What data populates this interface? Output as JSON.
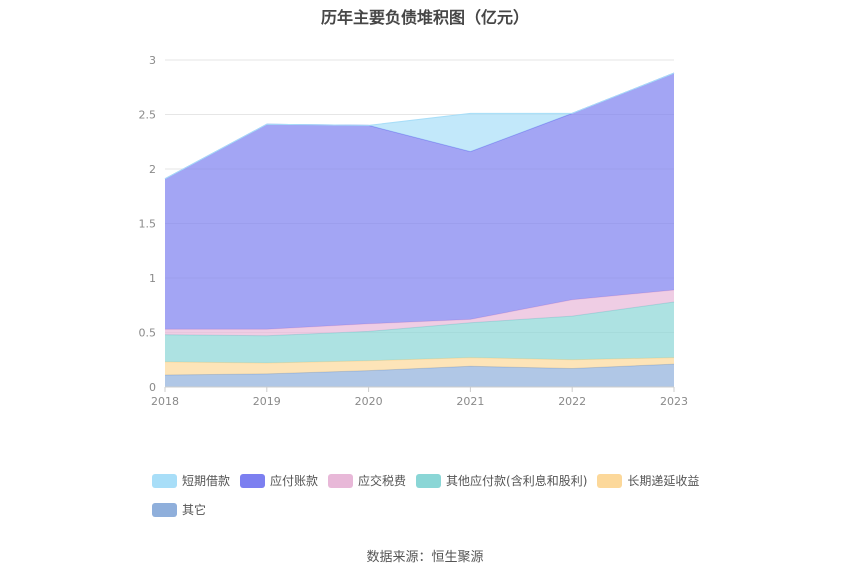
{
  "title": "历年主要负债堆积图（亿元）",
  "source_label": "数据来源：恒生聚源",
  "chart_data": {
    "type": "area",
    "stacked": true,
    "categories": [
      "2018",
      "2019",
      "2020",
      "2021",
      "2022",
      "2023"
    ],
    "ylim": [
      0,
      3
    ],
    "yticks": [
      "0",
      "0.5",
      "1",
      "1.5",
      "2",
      "2.5",
      "3"
    ],
    "grid": true,
    "legend_position": "bottom",
    "series": [
      {
        "name": "其它",
        "color": "#8fafdb",
        "values": [
          0.11,
          0.12,
          0.15,
          0.19,
          0.17,
          0.21
        ]
      },
      {
        "name": "长期递延收益",
        "color": "#fcd89a",
        "values": [
          0.12,
          0.1,
          0.09,
          0.08,
          0.08,
          0.06
        ]
      },
      {
        "name": "其他应付款(含利息和股利)",
        "color": "#8ad6d6",
        "values": [
          0.25,
          0.25,
          0.27,
          0.32,
          0.4,
          0.51
        ]
      },
      {
        "name": "应交税费",
        "color": "#e8b8d8",
        "values": [
          0.05,
          0.06,
          0.07,
          0.03,
          0.15,
          0.11
        ]
      },
      {
        "name": "应付账款",
        "color": "#7c7ff0",
        "values": [
          1.38,
          1.88,
          1.82,
          1.54,
          1.71,
          1.99
        ]
      },
      {
        "name": "短期借款",
        "color": "#a8def8",
        "values": [
          0,
          0,
          0,
          0.35,
          0,
          0
        ]
      }
    ]
  }
}
